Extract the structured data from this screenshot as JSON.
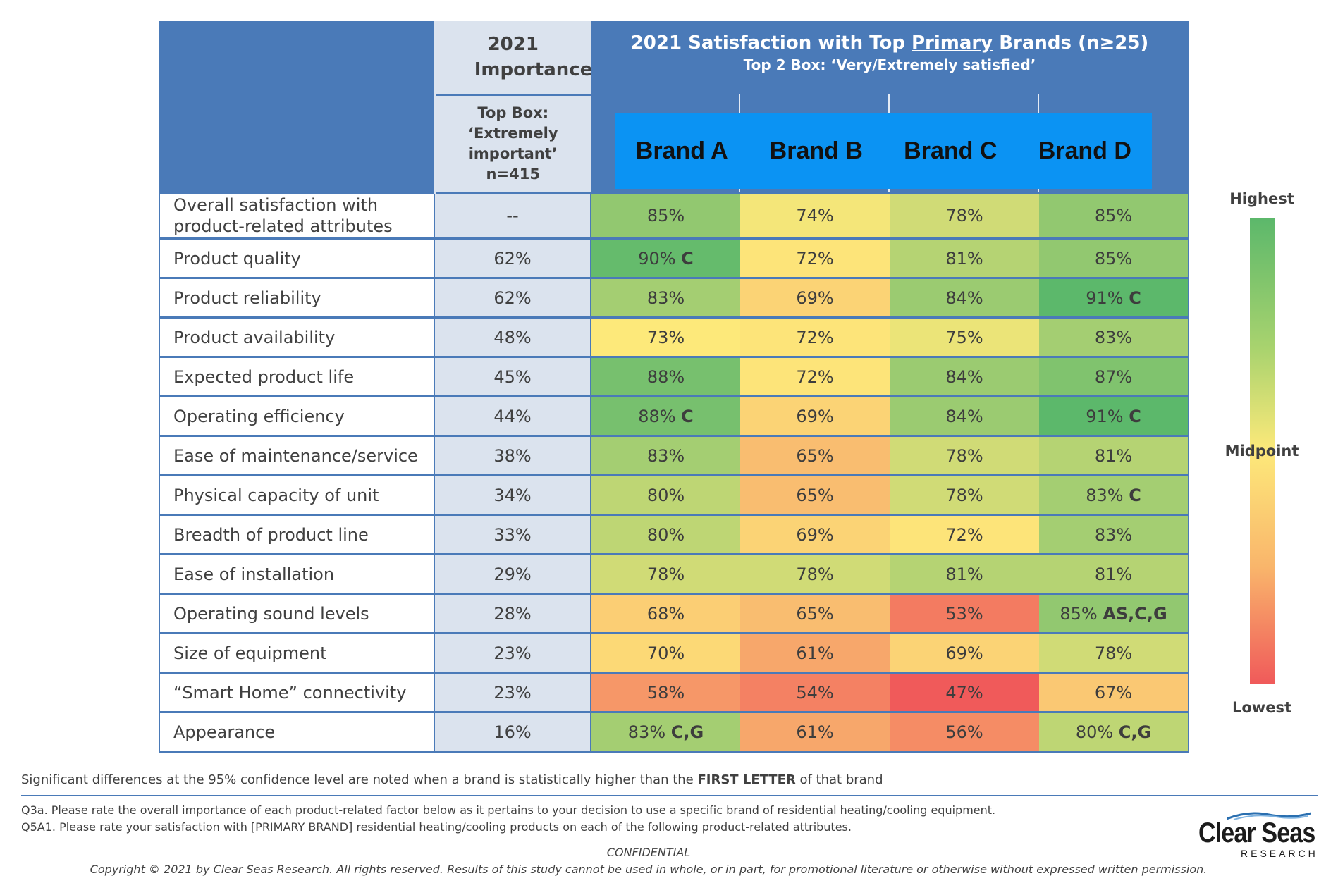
{
  "header": {
    "importance_title": "2021 Importance",
    "importance_sub_line1": "Top Box:",
    "importance_sub_line2": "‘Extremely",
    "importance_sub_line3": "important’",
    "importance_sub_line4": "n=415",
    "satisfaction_title_pre": "2021 Satisfaction with Top ",
    "satisfaction_title_underlined": "Primary",
    "satisfaction_title_post": " Brands (n≥25)",
    "satisfaction_subtitle": "Top 2 Box: ‘Very/Extremely satisfied’",
    "brands": [
      "Brand A",
      "Brand B",
      "Brand C",
      "Brand D"
    ]
  },
  "chart_data": {
    "type": "heatmap",
    "columns": [
      "2021 Importance",
      "Brand A",
      "Brand B",
      "Brand C",
      "Brand D"
    ],
    "rows": [
      {
        "attribute": "Overall satisfaction with product-related attributes",
        "importance": "--",
        "values": [
          {
            "v": 85,
            "sig": ""
          },
          {
            "v": 74,
            "sig": ""
          },
          {
            "v": 78,
            "sig": ""
          },
          {
            "v": 85,
            "sig": ""
          }
        ]
      },
      {
        "attribute": "Product quality",
        "importance": "62%",
        "values": [
          {
            "v": 90,
            "sig": "C"
          },
          {
            "v": 72,
            "sig": ""
          },
          {
            "v": 81,
            "sig": ""
          },
          {
            "v": 85,
            "sig": ""
          }
        ]
      },
      {
        "attribute": "Product reliability",
        "importance": "62%",
        "values": [
          {
            "v": 83,
            "sig": ""
          },
          {
            "v": 69,
            "sig": ""
          },
          {
            "v": 84,
            "sig": ""
          },
          {
            "v": 91,
            "sig": "C"
          }
        ]
      },
      {
        "attribute": "Product availability",
        "importance": "48%",
        "values": [
          {
            "v": 73,
            "sig": ""
          },
          {
            "v": 72,
            "sig": ""
          },
          {
            "v": 75,
            "sig": ""
          },
          {
            "v": 83,
            "sig": ""
          }
        ]
      },
      {
        "attribute": "Expected product life",
        "importance": "45%",
        "values": [
          {
            "v": 88,
            "sig": ""
          },
          {
            "v": 72,
            "sig": ""
          },
          {
            "v": 84,
            "sig": ""
          },
          {
            "v": 87,
            "sig": ""
          }
        ]
      },
      {
        "attribute": "Operating efficiency",
        "importance": "44%",
        "values": [
          {
            "v": 88,
            "sig": "C"
          },
          {
            "v": 69,
            "sig": ""
          },
          {
            "v": 84,
            "sig": ""
          },
          {
            "v": 91,
            "sig": "C"
          }
        ]
      },
      {
        "attribute": "Ease of maintenance/service",
        "importance": "38%",
        "values": [
          {
            "v": 83,
            "sig": ""
          },
          {
            "v": 65,
            "sig": ""
          },
          {
            "v": 78,
            "sig": ""
          },
          {
            "v": 81,
            "sig": ""
          }
        ]
      },
      {
        "attribute": "Physical capacity of unit",
        "importance": "34%",
        "values": [
          {
            "v": 80,
            "sig": ""
          },
          {
            "v": 65,
            "sig": ""
          },
          {
            "v": 78,
            "sig": ""
          },
          {
            "v": 83,
            "sig": "C"
          }
        ]
      },
      {
        "attribute": "Breadth of product line",
        "importance": "33%",
        "values": [
          {
            "v": 80,
            "sig": ""
          },
          {
            "v": 69,
            "sig": ""
          },
          {
            "v": 72,
            "sig": ""
          },
          {
            "v": 83,
            "sig": ""
          }
        ]
      },
      {
        "attribute": "Ease of installation",
        "importance": "29%",
        "values": [
          {
            "v": 78,
            "sig": ""
          },
          {
            "v": 78,
            "sig": ""
          },
          {
            "v": 81,
            "sig": ""
          },
          {
            "v": 81,
            "sig": ""
          }
        ]
      },
      {
        "attribute": "Operating sound levels",
        "importance": "28%",
        "values": [
          {
            "v": 68,
            "sig": ""
          },
          {
            "v": 65,
            "sig": ""
          },
          {
            "v": 53,
            "sig": ""
          },
          {
            "v": 85,
            "sig": "AS,C,G"
          }
        ]
      },
      {
        "attribute": "Size of equipment",
        "importance": "23%",
        "values": [
          {
            "v": 70,
            "sig": ""
          },
          {
            "v": 61,
            "sig": ""
          },
          {
            "v": 69,
            "sig": ""
          },
          {
            "v": 78,
            "sig": ""
          }
        ]
      },
      {
        "attribute": "“Smart Home” connectivity",
        "importance": "23%",
        "values": [
          {
            "v": 58,
            "sig": ""
          },
          {
            "v": 54,
            "sig": ""
          },
          {
            "v": 47,
            "sig": ""
          },
          {
            "v": 67,
            "sig": ""
          }
        ]
      },
      {
        "attribute": "Appearance",
        "importance": "16%",
        "values": [
          {
            "v": 83,
            "sig": "C,G"
          },
          {
            "v": 61,
            "sig": ""
          },
          {
            "v": 56,
            "sig": ""
          },
          {
            "v": 80,
            "sig": "C,G"
          }
        ]
      }
    ],
    "color_scale": {
      "low": "#f05a5a",
      "mid": "#fde97a",
      "high": "#5cb86b",
      "min_value": 47,
      "mid_value": 73,
      "max_value": 91
    }
  },
  "legend": {
    "highest": "Highest",
    "midpoint": "Midpoint",
    "lowest": "Lowest"
  },
  "footer": {
    "sig_note_pre": "Significant differences at the 95% confidence level are noted when a brand is statistically higher than the ",
    "sig_note_bold": "FIRST LETTER",
    "sig_note_post": " of that brand",
    "q3a_pre": "Q3a. Please rate the overall importance of each ",
    "q3a_link": "product-related factor",
    "q3a_post": " below as it pertains to your decision to use a specific brand of residential heating/cooling equipment.",
    "q5a1_pre": "Q5A1. Please rate your satisfaction with [PRIMARY BRAND] residential heating/cooling products on each of the following ",
    "q5a1_link": "product-related attributes",
    "q5a1_post": ".",
    "confidential": "CONFIDENTIAL",
    "copyright": "Copyright © 2021 by Clear Seas Research.  All rights reserved.  Results of this study cannot be used in whole, or in part, for promotional literature or otherwise without expressed written permission."
  },
  "logo": {
    "word": "Clear Seas",
    "sub": "RESEARCH"
  }
}
